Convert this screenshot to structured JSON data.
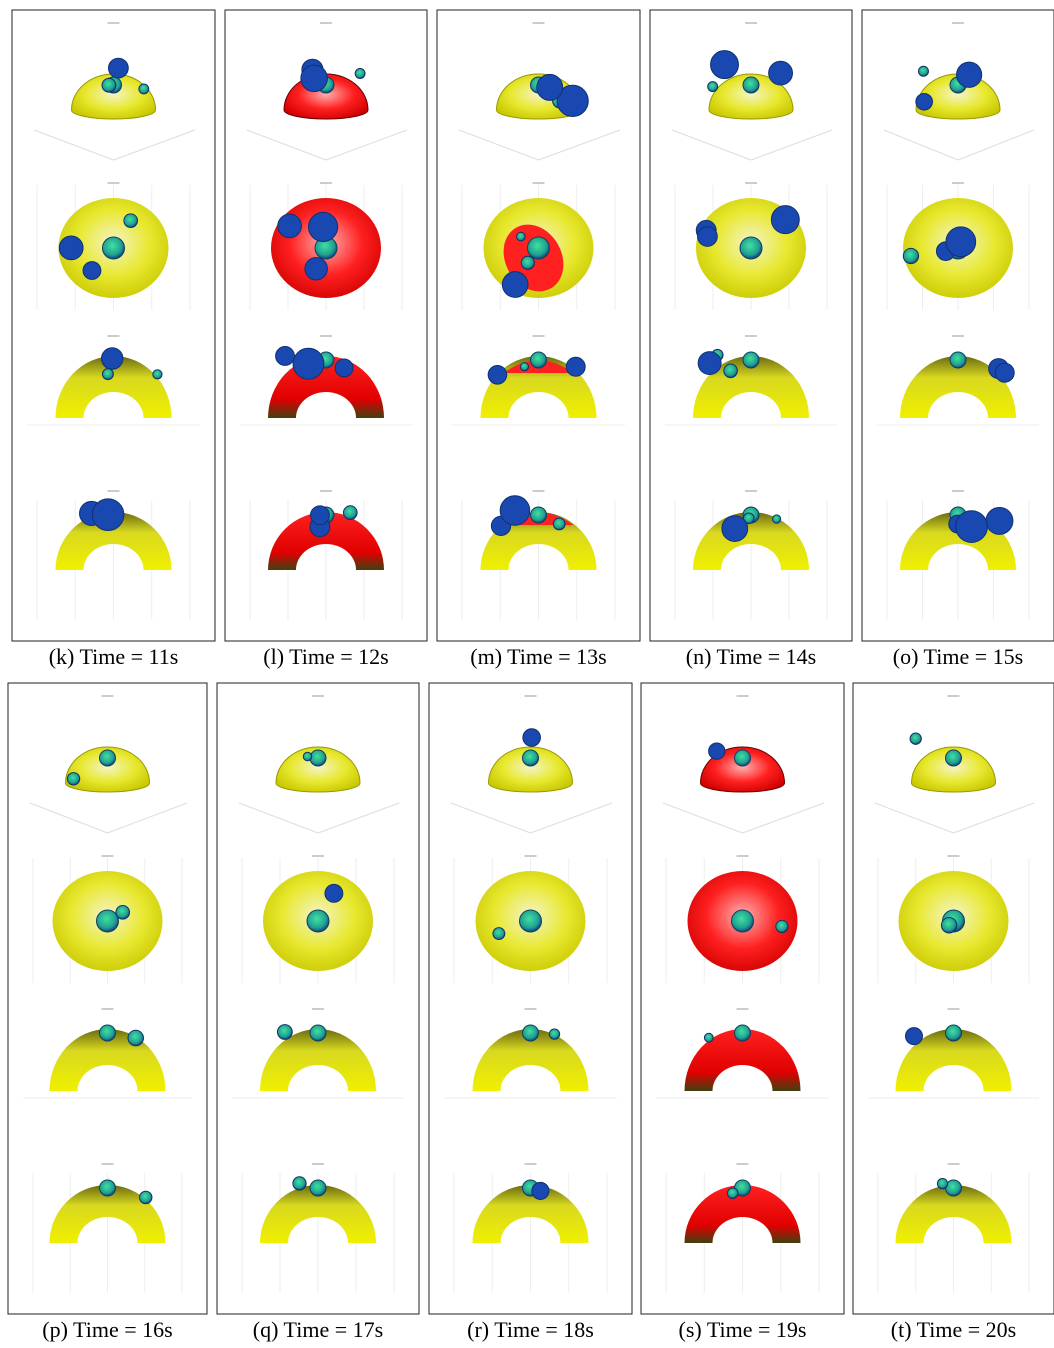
{
  "panels": [
    {
      "caption": "(k)  Time = 11s"
    },
    {
      "caption": "(l)  Time = 12s"
    },
    {
      "caption": "(m)  Time = 13s"
    },
    {
      "caption": "(n)  Time = 14s"
    },
    {
      "caption": "(o)  Time = 15s"
    },
    {
      "caption": "(p)  Time = 16s"
    },
    {
      "caption": "(q)  Time = 17s"
    },
    {
      "caption": "(r)  Time = 18s"
    },
    {
      "caption": "(s)  Time = 19s"
    },
    {
      "caption": "(t)  Time = 20s"
    }
  ]
}
